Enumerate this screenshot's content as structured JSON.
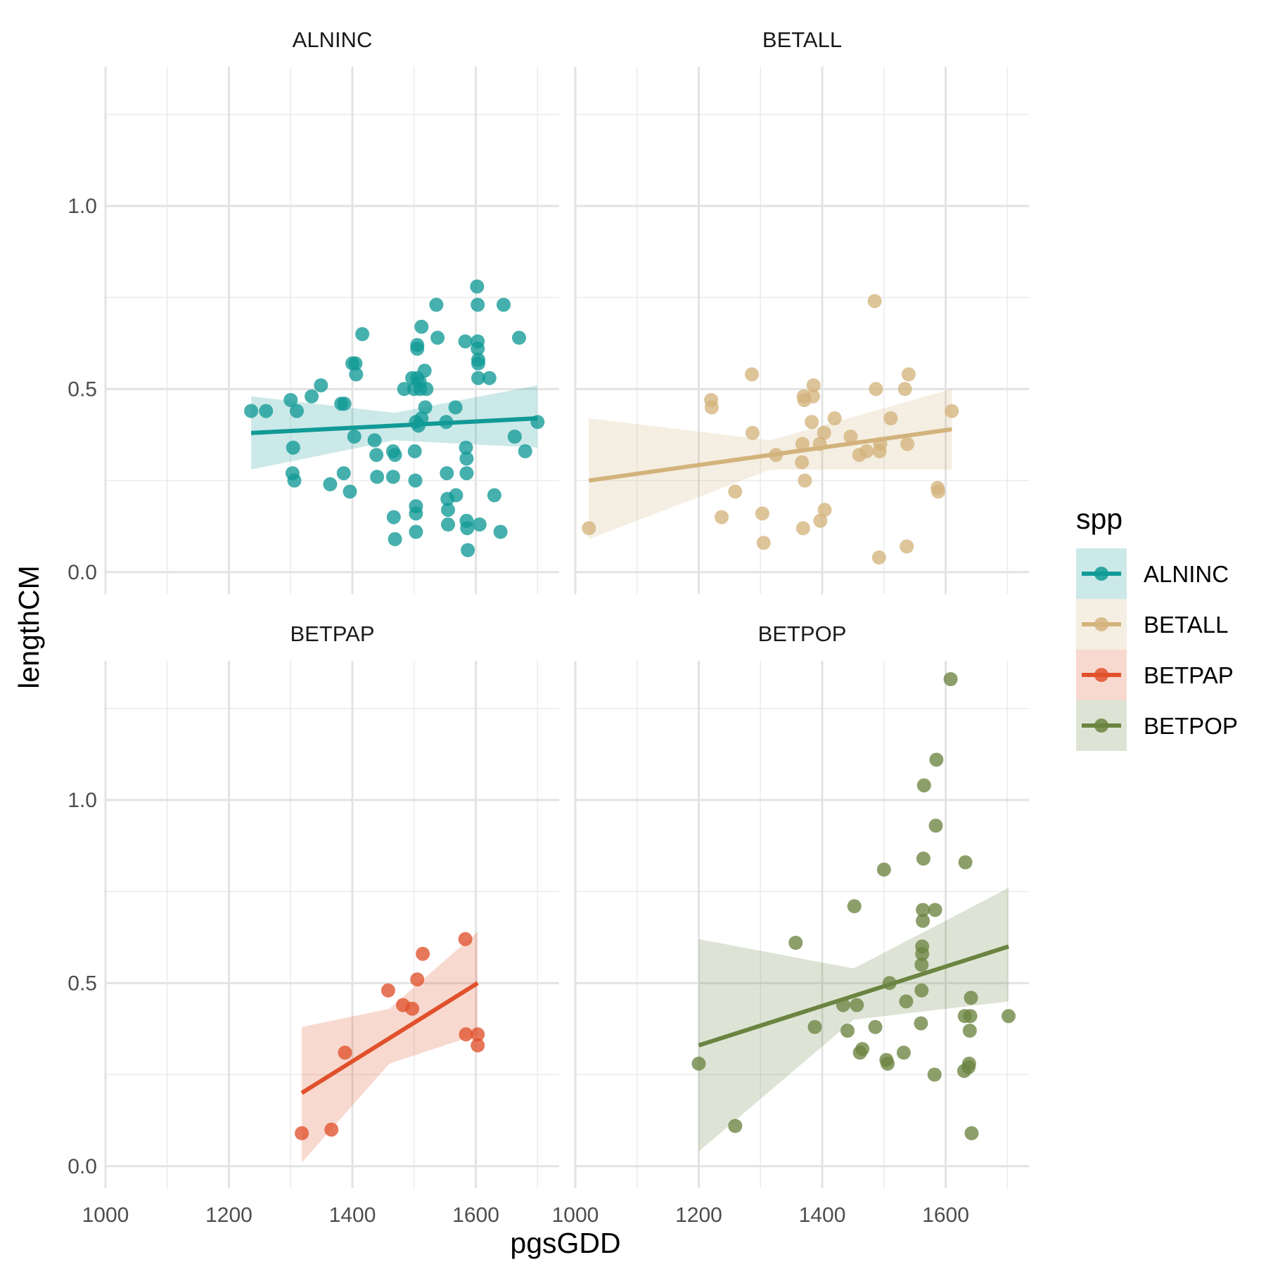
{
  "chart_data": {
    "type": "scatter",
    "xlabel": "pgsGDD",
    "ylabel": "lengthCM",
    "xlim": [
      1000,
      1735
    ],
    "ylim": [
      -0.06,
      1.38
    ],
    "x_ticks": [
      1000,
      1200,
      1400,
      1600
    ],
    "x_tick_labels": [
      "1000",
      "1200",
      "1400",
      "1600"
    ],
    "y_ticks": [
      0.0,
      0.5,
      1.0
    ],
    "y_tick_labels": [
      "0.0",
      "0.5",
      "1.0"
    ],
    "grid": true,
    "legend": {
      "title": "spp",
      "position": "right",
      "entries": [
        "ALNINC",
        "BETALL",
        "BETPAP",
        "BETPOP"
      ]
    },
    "panels": [
      {
        "name": "ALNINC",
        "color": "#119a96",
        "points": [
          [
            1236,
            0.44
          ],
          [
            1260,
            0.44
          ],
          [
            1300,
            0.47
          ],
          [
            1303,
            0.27
          ],
          [
            1304,
            0.34
          ],
          [
            1306,
            0.25
          ],
          [
            1310,
            0.44
          ],
          [
            1334,
            0.48
          ],
          [
            1349,
            0.51
          ],
          [
            1364,
            0.24
          ],
          [
            1382,
            0.46
          ],
          [
            1386,
            0.27
          ],
          [
            1387,
            0.46
          ],
          [
            1396,
            0.22
          ],
          [
            1400,
            0.57
          ],
          [
            1403,
            0.37
          ],
          [
            1405,
            0.57
          ],
          [
            1406,
            0.54
          ],
          [
            1416,
            0.65
          ],
          [
            1436,
            0.36
          ],
          [
            1439,
            0.32
          ],
          [
            1440,
            0.26
          ],
          [
            1466,
            0.33
          ],
          [
            1466,
            0.26
          ],
          [
            1467,
            0.15
          ],
          [
            1469,
            0.32
          ],
          [
            1469,
            0.09
          ],
          [
            1484,
            0.5
          ],
          [
            1497,
            0.53
          ],
          [
            1500,
            0.5
          ],
          [
            1501,
            0.33
          ],
          [
            1502,
            0.25
          ],
          [
            1503,
            0.41
          ],
          [
            1503,
            0.18
          ],
          [
            1503,
            0.16
          ],
          [
            1503,
            0.11
          ],
          [
            1505,
            0.53
          ],
          [
            1505,
            0.62
          ],
          [
            1505,
            0.61
          ],
          [
            1507,
            0.4
          ],
          [
            1509,
            0.52
          ],
          [
            1510,
            0.5
          ],
          [
            1512,
            0.67
          ],
          [
            1512,
            0.42
          ],
          [
            1517,
            0.55
          ],
          [
            1518,
            0.45
          ],
          [
            1520,
            0.5
          ],
          [
            1536,
            0.73
          ],
          [
            1538,
            0.64
          ],
          [
            1552,
            0.41
          ],
          [
            1553,
            0.27
          ],
          [
            1554,
            0.2
          ],
          [
            1555,
            0.17
          ],
          [
            1555,
            0.13
          ],
          [
            1567,
            0.45
          ],
          [
            1568,
            0.21
          ],
          [
            1583,
            0.63
          ],
          [
            1584,
            0.34
          ],
          [
            1585,
            0.31
          ],
          [
            1585,
            0.27
          ],
          [
            1585,
            0.14
          ],
          [
            1586,
            0.12
          ],
          [
            1587,
            0.06
          ],
          [
            1602,
            0.78
          ],
          [
            1603,
            0.73
          ],
          [
            1603,
            0.63
          ],
          [
            1603,
            0.61
          ],
          [
            1604,
            0.58
          ],
          [
            1604,
            0.57
          ],
          [
            1604,
            0.53
          ],
          [
            1606,
            0.13
          ],
          [
            1622,
            0.53
          ],
          [
            1630,
            0.21
          ],
          [
            1640,
            0.11
          ],
          [
            1645,
            0.73
          ],
          [
            1670,
            0.64
          ],
          [
            1663,
            0.37
          ],
          [
            1680,
            0.33
          ],
          [
            1700,
            0.41
          ]
        ],
        "fit": {
          "x": [
            1236,
            1700
          ],
          "y": [
            0.38,
            0.42
          ]
        },
        "ci": {
          "x": [
            1236,
            1468,
            1700
          ],
          "lower": [
            0.28,
            0.36,
            0.34
          ],
          "upper": [
            0.48,
            0.435,
            0.51
          ]
        }
      },
      {
        "name": "BETALL",
        "color": "#d3b37c",
        "points": [
          [
            1022,
            0.12
          ],
          [
            1220,
            0.47
          ],
          [
            1221,
            0.45
          ],
          [
            1237,
            0.15
          ],
          [
            1259,
            0.22
          ],
          [
            1286,
            0.54
          ],
          [
            1287,
            0.38
          ],
          [
            1303,
            0.16
          ],
          [
            1305,
            0.08
          ],
          [
            1325,
            0.32
          ],
          [
            1367,
            0.3
          ],
          [
            1368,
            0.35
          ],
          [
            1369,
            0.12
          ],
          [
            1370,
            0.48
          ],
          [
            1371,
            0.47
          ],
          [
            1372,
            0.25
          ],
          [
            1383,
            0.41
          ],
          [
            1385,
            0.48
          ],
          [
            1386,
            0.51
          ],
          [
            1396,
            0.35
          ],
          [
            1397,
            0.14
          ],
          [
            1403,
            0.38
          ],
          [
            1404,
            0.17
          ],
          [
            1420,
            0.42
          ],
          [
            1446,
            0.37
          ],
          [
            1460,
            0.32
          ],
          [
            1472,
            0.33
          ],
          [
            1485,
            0.74
          ],
          [
            1487,
            0.5
          ],
          [
            1492,
            0.04
          ],
          [
            1493,
            0.33
          ],
          [
            1494,
            0.35
          ],
          [
            1511,
            0.42
          ],
          [
            1534,
            0.5
          ],
          [
            1537,
            0.07
          ],
          [
            1538,
            0.35
          ],
          [
            1540,
            0.54
          ],
          [
            1587,
            0.23
          ],
          [
            1588,
            0.22
          ],
          [
            1610,
            0.44
          ]
        ],
        "fit": {
          "x": [
            1022,
            1610
          ],
          "y": [
            0.25,
            0.39
          ]
        },
        "ci": {
          "x": [
            1022,
            1316,
            1610
          ],
          "lower": [
            0.09,
            0.28,
            0.28
          ],
          "upper": [
            0.42,
            0.36,
            0.5
          ]
        }
      },
      {
        "name": "BETPAP",
        "color": "#e0512b",
        "points": [
          [
            1318,
            0.09
          ],
          [
            1366,
            0.1
          ],
          [
            1388,
            0.31
          ],
          [
            1458,
            0.48
          ],
          [
            1482,
            0.44
          ],
          [
            1497,
            0.43
          ],
          [
            1505,
            0.51
          ],
          [
            1514,
            0.58
          ],
          [
            1583,
            0.62
          ],
          [
            1584,
            0.36
          ],
          [
            1603,
            0.36
          ],
          [
            1603,
            0.33
          ]
        ],
        "fit": {
          "x": [
            1318,
            1603
          ],
          "y": [
            0.2,
            0.5
          ]
        },
        "ci": {
          "x": [
            1318,
            1460,
            1603
          ],
          "lower": [
            0.01,
            0.28,
            0.36
          ],
          "upper": [
            0.38,
            0.43,
            0.64
          ]
        }
      },
      {
        "name": "BETPOP",
        "color": "#6b8441",
        "points": [
          [
            1200,
            0.28
          ],
          [
            1259,
            0.11
          ],
          [
            1357,
            0.61
          ],
          [
            1388,
            0.38
          ],
          [
            1434,
            0.44
          ],
          [
            1441,
            0.37
          ],
          [
            1452,
            0.71
          ],
          [
            1456,
            0.44
          ],
          [
            1461,
            0.31
          ],
          [
            1465,
            0.32
          ],
          [
            1486,
            0.38
          ],
          [
            1500,
            0.81
          ],
          [
            1504,
            0.29
          ],
          [
            1506,
            0.28
          ],
          [
            1509,
            0.5
          ],
          [
            1532,
            0.31
          ],
          [
            1536,
            0.45
          ],
          [
            1560,
            0.39
          ],
          [
            1561,
            0.48
          ],
          [
            1561,
            0.55
          ],
          [
            1562,
            0.58
          ],
          [
            1562,
            0.6
          ],
          [
            1563,
            0.67
          ],
          [
            1563,
            0.7
          ],
          [
            1564,
            0.84
          ],
          [
            1565,
            1.04
          ],
          [
            1582,
            0.25
          ],
          [
            1583,
            0.7
          ],
          [
            1584,
            0.93
          ],
          [
            1585,
            1.11
          ],
          [
            1630,
            0.26
          ],
          [
            1631,
            0.41
          ],
          [
            1632,
            0.83
          ],
          [
            1637,
            0.27
          ],
          [
            1638,
            0.28
          ],
          [
            1639,
            0.37
          ],
          [
            1640,
            0.41
          ],
          [
            1641,
            0.46
          ],
          [
            1642,
            0.09
          ],
          [
            1608,
            1.33
          ],
          [
            1702,
            0.41
          ]
        ],
        "fit": {
          "x": [
            1200,
            1702
          ],
          "y": [
            0.33,
            0.6
          ]
        },
        "ci": {
          "x": [
            1200,
            1451,
            1702
          ],
          "lower": [
            0.04,
            0.4,
            0.45
          ],
          "upper": [
            0.62,
            0.54,
            0.76
          ]
        }
      }
    ]
  }
}
